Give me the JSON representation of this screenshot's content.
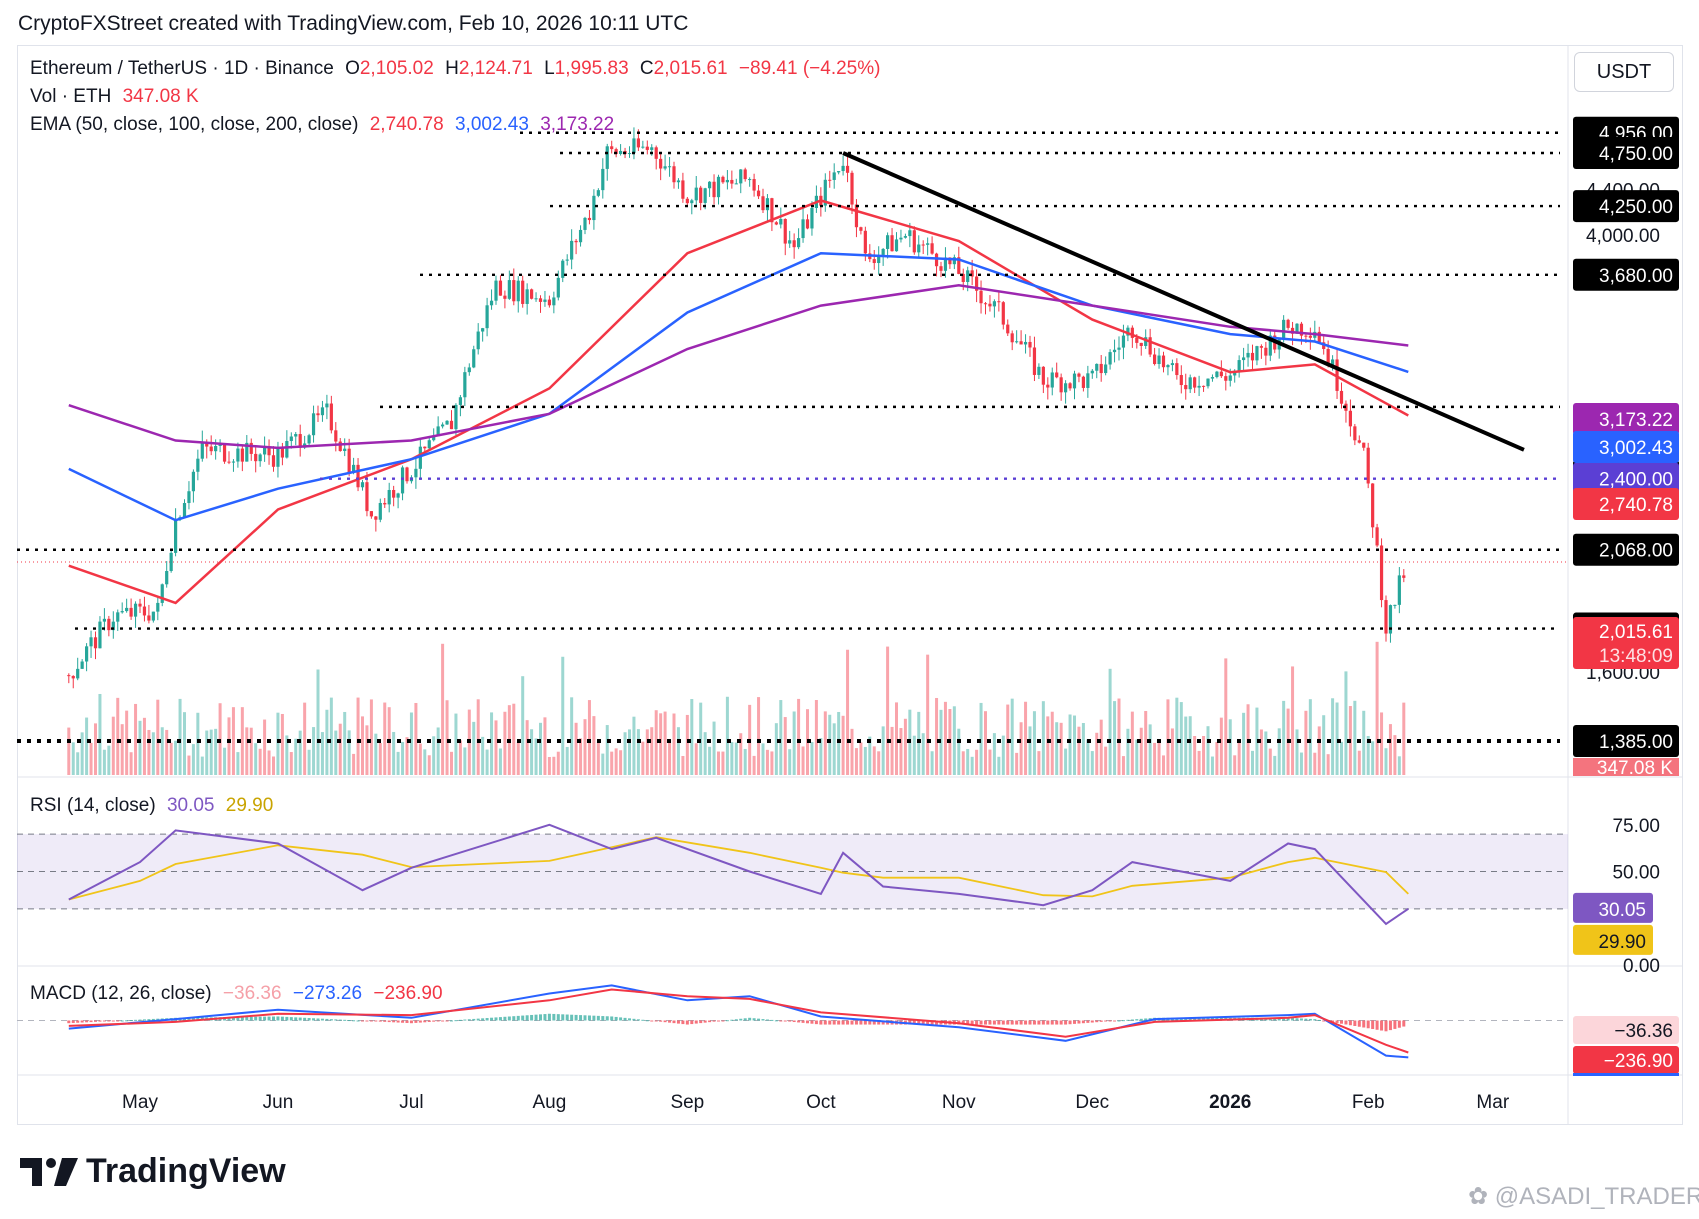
{
  "header": {
    "text": "CryptoFXStreet created with TradingView.com, Feb 10, 2026 10:11 UTC"
  },
  "legend": {
    "symbol": "Ethereum / TetherUS · 1D · Binance",
    "open_label": "O",
    "open": "2,105.02",
    "high_label": "H",
    "high": "2,124.71",
    "low_label": "L",
    "low": "1,995.83",
    "close_label": "C",
    "close": "2,015.61",
    "change": "−89.41 (−4.25%)",
    "vol_label": "Vol · ETH",
    "vol": "347.08 K",
    "ema_label": "EMA (50, close, 100, close, 200, close)",
    "ema50": "2,740.78",
    "ema100": "3,002.43",
    "ema200": "3,173.22"
  },
  "currency": "USDT",
  "rsi_legend": {
    "label": "RSI (14, close)",
    "rsi": "30.05",
    "ma": "29.90"
  },
  "macd_legend": {
    "label": "MACD (12, 26, close)",
    "hist": "−36.36",
    "macd": "−273.26",
    "signal": "−236.90"
  },
  "branding": {
    "logo_text": "TradingView",
    "watermark": "@ASADI_TRADER"
  },
  "colors": {
    "up": "#26a69a",
    "down": "#f23645",
    "ema50": "#f23645",
    "ema100": "#2962ff",
    "ema200": "#9c27b0",
    "level_line": "#000000",
    "level_2400": "#5b3fd4",
    "rsi": "#7e57c2",
    "rsi_ma": "#f0c419",
    "macd": "#2962ff",
    "signal": "#f23645"
  },
  "chart_data": {
    "type": "line",
    "title": "Ethereum / TetherUS · 1D · Binance",
    "price_axis": {
      "scale": "log",
      "ticks": [
        1600,
        4000,
        4400
      ],
      "ylim": [
        1300,
        5100
      ]
    },
    "time_axis": {
      "ticks": [
        "May",
        "Jun",
        "Jul",
        "Aug",
        "Sep",
        "Oct",
        "Nov",
        "Dec",
        "2026",
        "Feb",
        "Mar"
      ]
    },
    "price_series": {
      "name": "ETH/USDT close (approx.)",
      "x": [
        "Apr 15",
        "Apr 25",
        "May 5",
        "May 9",
        "May 15",
        "Jun 1",
        "Jun 12",
        "Jun 22",
        "Jul 1",
        "Jul 10",
        "Jul 20",
        "Aug 1",
        "Aug 10",
        "Aug 14",
        "Aug 24",
        "Sep 1",
        "Sep 15",
        "Sep 25",
        "Oct 6",
        "Oct 11",
        "Oct 20",
        "Nov 1",
        "Nov 10",
        "Nov 20",
        "Dec 1",
        "Dec 10",
        "Dec 20",
        "Jan 1",
        "Jan 14",
        "Jan 20",
        "Jan 25",
        "Jan 31",
        "Feb 5",
        "Feb 10"
      ],
      "y": [
        1590,
        1800,
        1820,
        2200,
        2550,
        2520,
        2750,
        2230,
        2450,
        2700,
        3600,
        3500,
        4200,
        4750,
        4800,
        4350,
        4500,
        3900,
        4700,
        3800,
        4000,
        3700,
        3400,
        2950,
        2950,
        3300,
        2950,
        2980,
        3300,
        3300,
        2950,
        2500,
        1760,
        2015
      ]
    },
    "ema_series": [
      {
        "name": "EMA 50",
        "value": "2,740.78",
        "x": [
          "Apr 15",
          "May 9",
          "Jun 1",
          "Jul 1",
          "Aug 1",
          "Sep 1",
          "Oct 1",
          "Nov 1",
          "Dec 1",
          "Jan 1",
          "Jan 20",
          "Feb 10"
        ],
        "y": [
          2000,
          1850,
          2250,
          2500,
          2900,
          3850,
          4300,
          3950,
          3350,
          3000,
          3050,
          2740
        ]
      },
      {
        "name": "EMA 100",
        "value": "3,002.43",
        "x": [
          "Apr 15",
          "May 9",
          "Jun 1",
          "Jul 1",
          "Aug 1",
          "Sep 1",
          "Oct 1",
          "Nov 1",
          "Dec 1",
          "Jan 1",
          "Jan 20",
          "Feb 10"
        ],
        "y": [
          2450,
          2200,
          2350,
          2500,
          2750,
          3400,
          3850,
          3800,
          3450,
          3250,
          3200,
          3002
        ]
      },
      {
        "name": "EMA 200",
        "value": "3,173.22",
        "x": [
          "Apr 15",
          "May 9",
          "Jun 1",
          "Jul 1",
          "Aug 1",
          "Sep 1",
          "Oct 1",
          "Nov 1",
          "Dec 1",
          "Jan 1",
          "Jan 20",
          "Feb 10"
        ],
        "y": [
          2800,
          2600,
          2560,
          2600,
          2750,
          3150,
          3450,
          3600,
          3450,
          3300,
          3250,
          3173
        ]
      }
    ],
    "levels": [
      {
        "label": "4,956.00",
        "value": 4956
      },
      {
        "label": "4,750.00",
        "value": 4750
      },
      {
        "label": "4,250.00",
        "value": 4250
      },
      {
        "label": "3,680.00",
        "value": 3680
      },
      {
        "label": "2,790.00",
        "value": 2790
      },
      {
        "label": "2,400.00",
        "value": 2400
      },
      {
        "label": "2,068.00",
        "value": 2068
      },
      {
        "label": "1,753.07",
        "value": 1753.07
      },
      {
        "label": "1,385.00",
        "value": 1385
      }
    ],
    "trendline": {
      "from": {
        "x": "Oct 6",
        "y": 4750
      },
      "to": {
        "x": "Mar 8",
        "y": 2550
      }
    },
    "price_label": {
      "value": "2,015.61",
      "countdown": "13:48:09"
    },
    "volume": {
      "last": "347.08 K"
    },
    "rsi": {
      "ylim": [
        0,
        100
      ],
      "ticks": [
        "75.00",
        "50.00",
        "0.00"
      ],
      "bands": [
        70,
        50,
        30
      ],
      "value": "30.05",
      "ma_value": "29.90",
      "x": [
        "Apr 15",
        "May 1",
        "May 9",
        "Jun 1",
        "Jun 20",
        "Jul 1",
        "Aug 1",
        "Aug 15",
        "Aug 25",
        "Sep 15",
        "Oct 1",
        "Oct 6",
        "Oct 15",
        "Nov 1",
        "Nov 20",
        "Dec 1",
        "Dec 10",
        "Jan 1",
        "Jan 14",
        "Jan 20",
        "Feb 5",
        "Feb 10"
      ],
      "y": [
        35,
        55,
        72,
        65,
        40,
        52,
        75,
        62,
        68,
        50,
        38,
        60,
        42,
        38,
        32,
        40,
        55,
        45,
        65,
        62,
        22,
        30.05
      ]
    },
    "macd": {
      "hist": "−36.36",
      "macd": "−273.26",
      "signal": "−236.90",
      "x": [
        "Apr 15",
        "May 9",
        "Jun 1",
        "Jul 1",
        "Aug 1",
        "Aug 15",
        "Sep 1",
        "Sep 15",
        "Oct 1",
        "Nov 1",
        "Nov 25",
        "Dec 15",
        "Jan 14",
        "Jan 20",
        "Feb 5",
        "Feb 10"
      ],
      "macd_y": [
        -60,
        10,
        80,
        20,
        200,
        260,
        150,
        180,
        30,
        -50,
        -150,
        10,
        40,
        50,
        -260,
        -273
      ],
      "signal_y": [
        -40,
        -10,
        50,
        40,
        150,
        230,
        180,
        160,
        60,
        -20,
        -120,
        -10,
        20,
        40,
        -180,
        -237
      ]
    }
  }
}
